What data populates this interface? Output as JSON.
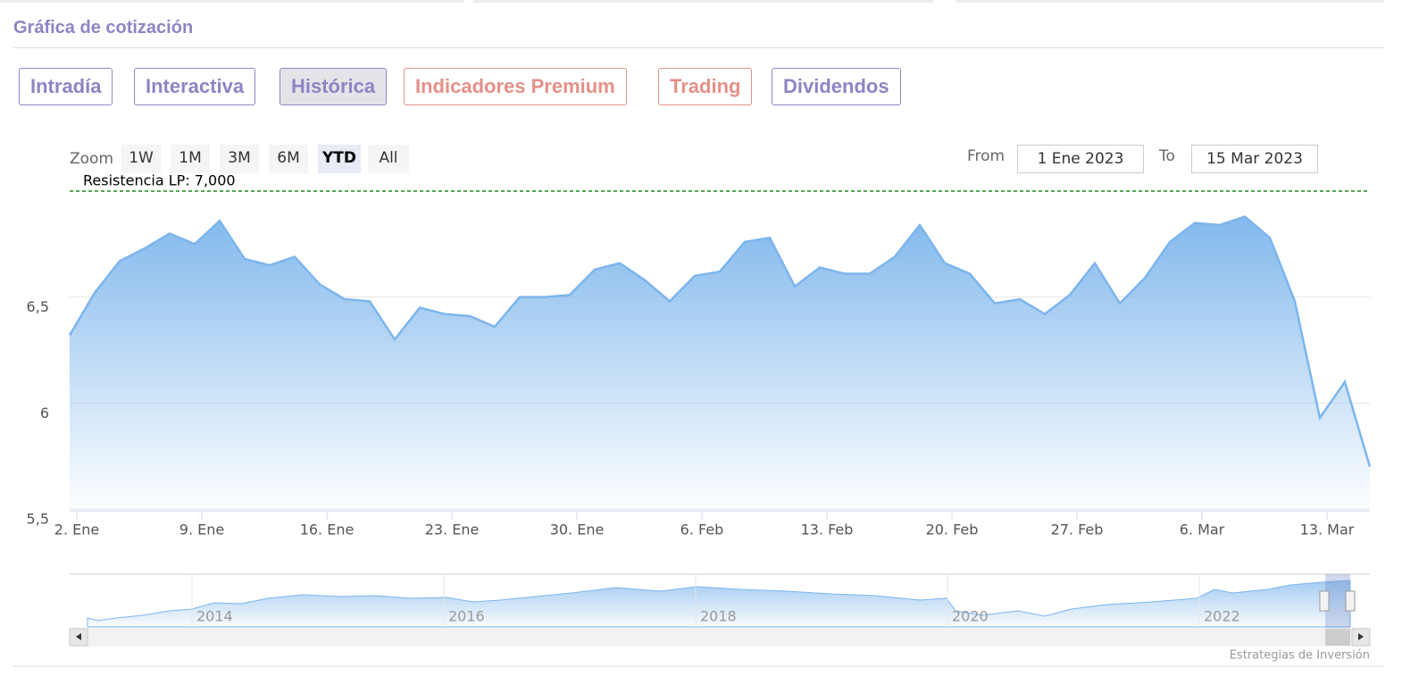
{
  "header": {
    "title": "Gráfica de cotización"
  },
  "tabs": [
    "Intradía",
    "Interactiva",
    "Histórica",
    "Indicadores Premium",
    "Trading",
    "Dividendos"
  ],
  "zoom": {
    "label": "Zoom",
    "buttons": [
      "1W",
      "1M",
      "3M",
      "6M",
      "YTD",
      "All"
    ]
  },
  "range": {
    "from_label": "From",
    "from": "1 Ene 2023",
    "to_label": "To",
    "to": "15 Mar 2023"
  },
  "chart_data": {
    "type": "area",
    "color": "#7cb5ec",
    "categories": [
      "2. Ene",
      null,
      null,
      null,
      null,
      "9. Ene",
      null,
      null,
      null,
      null,
      "16. Ene",
      null,
      null,
      null,
      null,
      "23. Ene",
      null,
      null,
      null,
      null,
      "30. Ene",
      null,
      null,
      null,
      null,
      "6. Feb",
      null,
      null,
      null,
      null,
      "13. Feb",
      null,
      null,
      null,
      null,
      "20. Feb",
      null,
      null,
      null,
      null,
      "27. Feb",
      null,
      null,
      null,
      null,
      "6. Mar",
      null,
      null,
      null,
      null,
      "13. Mar",
      null,
      null
    ],
    "values": [
      6.32,
      6.52,
      6.67,
      6.73,
      6.8,
      6.75,
      6.86,
      6.68,
      6.65,
      6.69,
      6.56,
      6.49,
      6.48,
      6.3,
      6.45,
      6.42,
      6.41,
      6.36,
      6.5,
      6.5,
      6.51,
      6.63,
      6.66,
      6.58,
      6.48,
      6.6,
      6.62,
      6.76,
      6.78,
      6.55,
      6.64,
      6.61,
      6.61,
      6.69,
      6.84,
      6.66,
      6.61,
      6.47,
      6.49,
      6.42,
      6.51,
      6.66,
      6.47,
      6.59,
      6.76,
      6.85,
      6.84,
      6.88,
      6.78,
      6.48,
      5.93,
      6.1,
      5.7
    ],
    "ylim": [
      5.5,
      7.0
    ],
    "yticks": [
      {
        "value": 5.5,
        "label": "5,5"
      },
      6,
      {
        "value": 6.5,
        "label": "6,5"
      }
    ],
    "grid": true,
    "resistance": {
      "label": "Resistencia LP: 7,000",
      "value": 7.0
    },
    "navigator_labels": [
      "2014",
      "2016",
      "2018",
      "2020",
      "2022"
    ],
    "credit": "Estrategias de Inversión"
  }
}
